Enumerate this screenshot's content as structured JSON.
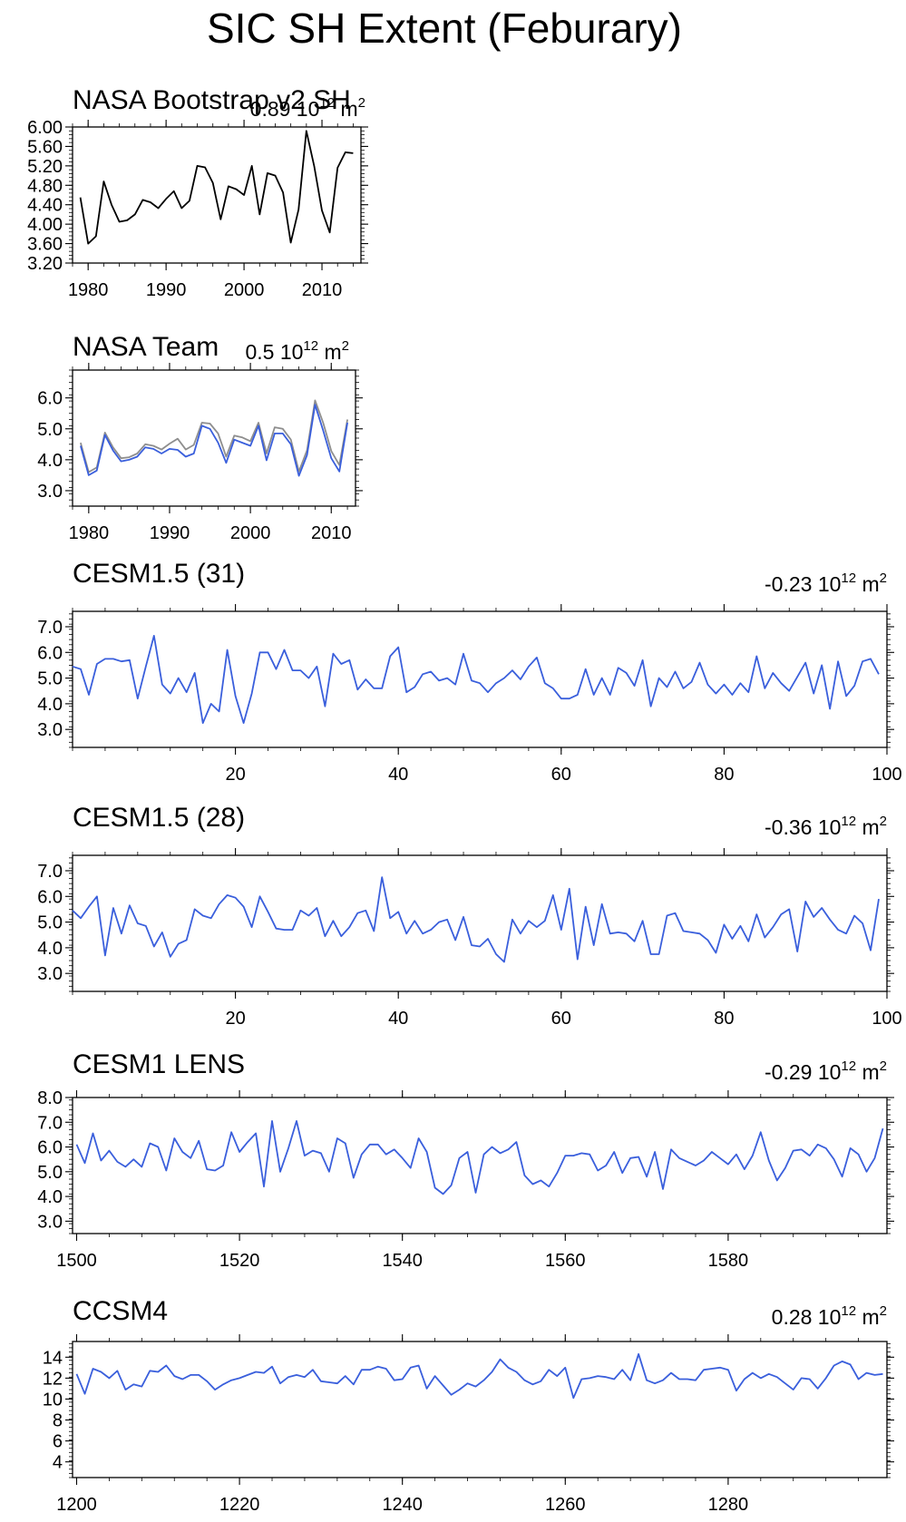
{
  "title": "SIC SH Extent (Feburary)",
  "colors": {
    "observed": "#000000",
    "model": "#3a5fdc",
    "team_overlay": "#8e8e8e"
  },
  "chart_data": [
    {
      "type": "line",
      "title": "NASA Bootstrap v2 SH",
      "trend_text": "0.89 10",
      "trend_sup": "12",
      "trend_unit": " m",
      "trend_unit_sup": "2",
      "xlim": [
        1978,
        2015
      ],
      "ylim": [
        3.2,
        6.0
      ],
      "x_ticks": [
        1980,
        1990,
        2000,
        2010
      ],
      "x_tick_labels": [
        "1980",
        "1990",
        "2000",
        "2010"
      ],
      "y_ticks": [
        3.2,
        3.6,
        4.0,
        4.4,
        4.8,
        5.2,
        5.6,
        6.0
      ],
      "y_tick_labels": [
        "3.20",
        "3.60",
        "4.00",
        "4.40",
        "4.80",
        "5.20",
        "5.60",
        "6.00"
      ],
      "x_start": 1979,
      "series": [
        {
          "color": "#000000",
          "values": [
            4.55,
            3.6,
            3.75,
            4.88,
            4.4,
            4.05,
            4.08,
            4.2,
            4.5,
            4.45,
            4.33,
            4.52,
            4.68,
            4.33,
            4.48,
            5.2,
            5.17,
            4.85,
            4.1,
            4.78,
            4.72,
            4.6,
            5.2,
            4.2,
            5.05,
            5.0,
            4.65,
            3.62,
            4.3,
            5.92,
            5.2,
            4.28,
            3.83,
            5.16,
            5.48,
            5.46
          ]
        }
      ]
    },
    {
      "type": "line",
      "title": "NASA Team",
      "trend_text": "0.5 10",
      "trend_sup": "12",
      "trend_unit": " m",
      "trend_unit_sup": "2",
      "xlim": [
        1978,
        2013
      ],
      "ylim": [
        2.5,
        6.9
      ],
      "x_ticks": [
        1980,
        1990,
        2000,
        2010
      ],
      "x_tick_labels": [
        "1980",
        "1990",
        "2000",
        "2010"
      ],
      "y_ticks": [
        3.0,
        4.0,
        5.0,
        6.0
      ],
      "y_tick_labels": [
        "3.0",
        "4.0",
        "5.0",
        "6.0"
      ],
      "x_start": 1979,
      "series": [
        {
          "color": "#8e8e8e",
          "values": [
            4.55,
            3.6,
            3.75,
            4.88,
            4.4,
            4.05,
            4.08,
            4.2,
            4.5,
            4.45,
            4.33,
            4.52,
            4.68,
            4.33,
            4.48,
            5.2,
            5.17,
            4.85,
            4.1,
            4.78,
            4.72,
            4.6,
            5.2,
            4.2,
            5.05,
            5.0,
            4.65,
            3.62,
            4.3,
            5.92,
            5.2,
            4.28,
            3.83,
            5.3
          ]
        },
        {
          "color": "#3a5fdc",
          "values": [
            4.45,
            3.5,
            3.65,
            4.8,
            4.3,
            3.95,
            4.0,
            4.1,
            4.4,
            4.35,
            4.2,
            4.35,
            4.32,
            4.1,
            4.2,
            5.1,
            5.0,
            4.55,
            3.9,
            4.65,
            4.55,
            4.45,
            5.1,
            3.98,
            4.85,
            4.85,
            4.5,
            3.48,
            4.15,
            5.78,
            4.95,
            4.05,
            3.62,
            5.2
          ]
        }
      ]
    },
    {
      "type": "line",
      "title": "CESM1.5 (31)",
      "trend_text": "-0.23 10",
      "trend_sup": "12",
      "trend_unit": " m",
      "trend_unit_sup": "2",
      "xlim": [
        0,
        100
      ],
      "ylim": [
        2.3,
        7.6
      ],
      "x_ticks": [
        20,
        40,
        60,
        80,
        100
      ],
      "x_tick_labels": [
        "20",
        "40",
        "60",
        "80",
        "100"
      ],
      "y_ticks": [
        3.0,
        4.0,
        5.0,
        6.0,
        7.0
      ],
      "y_tick_labels": [
        "3.0",
        "4.0",
        "5.0",
        "6.0",
        "7.0"
      ],
      "x_start": 0,
      "series": [
        {
          "color": "#3a5fdc",
          "values": [
            5.45,
            5.35,
            4.35,
            5.55,
            5.75,
            5.75,
            5.65,
            5.7,
            4.2,
            5.45,
            6.65,
            4.75,
            4.4,
            5.0,
            4.45,
            5.2,
            3.25,
            4.0,
            3.7,
            6.1,
            4.3,
            3.25,
            4.4,
            6.0,
            6.0,
            5.35,
            6.1,
            5.3,
            5.3,
            5.0,
            5.45,
            3.9,
            5.95,
            5.55,
            5.7,
            4.55,
            4.95,
            4.6,
            4.6,
            5.85,
            6.2,
            4.45,
            4.65,
            5.15,
            5.25,
            4.9,
            5.0,
            4.75,
            5.95,
            4.9,
            4.8,
            4.45,
            4.8,
            5.0,
            5.3,
            4.95,
            5.45,
            5.8,
            4.8,
            4.6,
            4.2,
            4.2,
            4.35,
            5.35,
            4.35,
            5.0,
            4.35,
            5.4,
            5.2,
            4.7,
            5.7,
            3.9,
            5.0,
            4.65,
            5.25,
            4.6,
            4.85,
            5.6,
            4.75,
            4.4,
            4.75,
            4.35,
            4.8,
            4.45,
            5.85,
            4.6,
            5.2,
            4.8,
            4.5,
            5.05,
            5.6,
            4.4,
            5.5,
            3.8,
            5.65,
            4.3,
            4.7,
            5.65,
            5.75,
            5.15
          ]
        }
      ]
    },
    {
      "type": "line",
      "title": "CESM1.5 (28)",
      "trend_text": "-0.36 10",
      "trend_sup": "12",
      "trend_unit": " m",
      "trend_unit_sup": "2",
      "xlim": [
        0,
        100
      ],
      "ylim": [
        2.3,
        7.6
      ],
      "x_ticks": [
        20,
        40,
        60,
        80,
        100
      ],
      "x_tick_labels": [
        "20",
        "40",
        "60",
        "80",
        "100"
      ],
      "y_ticks": [
        3.0,
        4.0,
        5.0,
        6.0,
        7.0
      ],
      "y_tick_labels": [
        "3.0",
        "4.0",
        "5.0",
        "6.0",
        "7.0"
      ],
      "x_start": 0,
      "series": [
        {
          "color": "#3a5fdc",
          "values": [
            5.45,
            5.15,
            5.6,
            6.0,
            3.7,
            5.55,
            4.55,
            5.65,
            4.95,
            4.85,
            4.05,
            4.6,
            3.65,
            4.15,
            4.3,
            5.5,
            5.25,
            5.15,
            5.7,
            6.05,
            5.95,
            5.6,
            4.8,
            6.0,
            5.4,
            4.75,
            4.7,
            4.7,
            5.45,
            5.25,
            5.55,
            4.45,
            5.05,
            4.45,
            4.8,
            5.35,
            5.45,
            4.65,
            6.75,
            5.15,
            5.4,
            4.55,
            5.05,
            4.55,
            4.7,
            5.0,
            5.1,
            4.3,
            5.2,
            4.1,
            4.05,
            4.35,
            3.75,
            3.45,
            5.1,
            4.55,
            5.05,
            4.8,
            5.05,
            6.05,
            4.7,
            6.3,
            3.55,
            5.6,
            4.1,
            5.7,
            4.55,
            4.6,
            4.55,
            4.25,
            5.05,
            3.75,
            3.75,
            5.25,
            5.35,
            4.65,
            4.6,
            4.55,
            4.3,
            3.8,
            4.9,
            4.35,
            4.85,
            4.25,
            5.3,
            4.4,
            4.8,
            5.3,
            5.5,
            3.85,
            5.8,
            5.2,
            5.55,
            5.1,
            4.7,
            4.55,
            5.25,
            4.95,
            3.9,
            5.9
          ]
        }
      ]
    },
    {
      "type": "line",
      "title": "CESM1 LENS",
      "trend_text": "-0.29 10",
      "trend_sup": "12",
      "trend_unit": " m",
      "trend_unit_sup": "2",
      "xlim": [
        1499.5,
        1599.5
      ],
      "ylim": [
        2.5,
        8.0
      ],
      "x_ticks": [
        1500,
        1520,
        1540,
        1560,
        1580
      ],
      "x_tick_labels": [
        "1500",
        "1520",
        "1540",
        "1560",
        "1580"
      ],
      "y_ticks": [
        3.0,
        4.0,
        5.0,
        6.0,
        7.0,
        8.0
      ],
      "y_tick_labels": [
        "3.0",
        "4.0",
        "5.0",
        "6.0",
        "7.0",
        "8.0"
      ],
      "x_start": 1500,
      "series": [
        {
          "color": "#3a5fdc",
          "values": [
            6.1,
            5.35,
            6.55,
            5.45,
            5.85,
            5.4,
            5.2,
            5.5,
            5.2,
            6.15,
            6.0,
            5.05,
            6.35,
            5.8,
            5.55,
            6.25,
            5.1,
            5.05,
            5.25,
            6.6,
            5.8,
            6.2,
            6.55,
            4.4,
            7.05,
            5.0,
            5.95,
            7.05,
            5.65,
            5.85,
            5.75,
            5.0,
            6.35,
            6.15,
            4.75,
            5.7,
            6.1,
            6.1,
            5.7,
            5.9,
            5.55,
            5.15,
            6.35,
            5.8,
            4.35,
            4.1,
            4.45,
            5.55,
            5.8,
            4.15,
            5.7,
            6.0,
            5.75,
            5.9,
            6.2,
            4.85,
            4.5,
            4.65,
            4.4,
            4.95,
            5.65,
            5.65,
            5.75,
            5.7,
            5.05,
            5.25,
            5.8,
            4.95,
            5.55,
            5.6,
            4.8,
            5.8,
            4.3,
            5.9,
            5.55,
            5.4,
            5.25,
            5.45,
            5.8,
            5.55,
            5.3,
            5.7,
            5.1,
            5.65,
            6.6,
            5.45,
            4.65,
            5.15,
            5.85,
            5.9,
            5.65,
            6.1,
            5.95,
            5.5,
            4.8,
            5.95,
            5.7,
            5.0,
            5.55,
            6.75
          ]
        }
      ]
    },
    {
      "type": "line",
      "title": "CCSM4",
      "trend_text": "0.28 10",
      "trend_sup": "12",
      "trend_unit": " m",
      "trend_unit_sup": "2",
      "xlim": [
        1199.5,
        1299.5
      ],
      "ylim": [
        2.5,
        15.5
      ],
      "x_ticks": [
        1200,
        1220,
        1240,
        1260,
        1280
      ],
      "x_tick_labels": [
        "1200",
        "1220",
        "1240",
        "1260",
        "1280"
      ],
      "y_ticks": [
        4,
        6,
        8,
        10,
        12,
        14
      ],
      "y_tick_labels": [
        "4",
        "6",
        "8",
        "10",
        "12",
        "14"
      ],
      "x_start": 1200,
      "series": [
        {
          "color": "#3a5fdc",
          "values": [
            12.4,
            10.5,
            12.9,
            12.6,
            12.0,
            12.7,
            10.9,
            11.4,
            11.2,
            12.7,
            12.6,
            13.2,
            12.2,
            11.9,
            12.3,
            12.3,
            11.7,
            10.9,
            11.4,
            11.8,
            12.0,
            12.3,
            12.6,
            12.5,
            13.1,
            11.5,
            12.1,
            12.3,
            12.1,
            12.8,
            11.7,
            11.6,
            11.5,
            12.2,
            11.4,
            12.8,
            12.8,
            13.1,
            12.9,
            11.8,
            11.9,
            13.0,
            13.2,
            11.0,
            12.2,
            11.3,
            10.4,
            10.9,
            11.5,
            11.2,
            11.8,
            12.6,
            13.8,
            13.0,
            12.6,
            11.8,
            11.4,
            11.7,
            12.8,
            12.2,
            13.0,
            10.1,
            11.9,
            12.0,
            12.2,
            12.1,
            11.9,
            12.8,
            11.8,
            14.3,
            11.8,
            11.5,
            11.8,
            12.5,
            11.9,
            11.9,
            11.8,
            12.8,
            12.9,
            13.0,
            12.8,
            10.8,
            11.9,
            12.5,
            12.0,
            12.4,
            12.1,
            11.5,
            10.9,
            12.0,
            11.9,
            11.0,
            12.0,
            13.2,
            13.6,
            13.3,
            11.9,
            12.5,
            12.3,
            12.4
          ]
        }
      ]
    }
  ]
}
